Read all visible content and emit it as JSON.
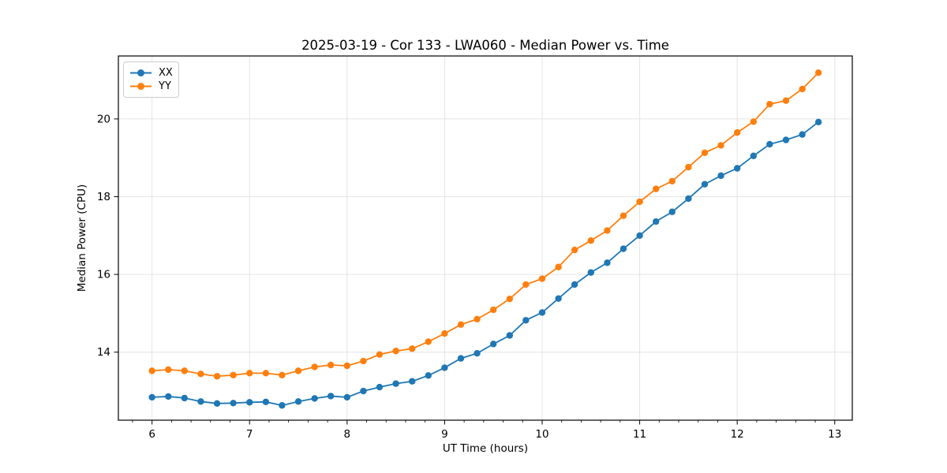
{
  "figure": {
    "title": "2025-03-19 - Cor 133 - LWA060 - Median Power vs. Time"
  },
  "chart_data": {
    "type": "line",
    "title": "2025-03-19 - Cor 133 - LWA060 - Median Power vs. Time",
    "xlabel": "UT Time (hours)",
    "ylabel": "Median Power (CPU)",
    "xlim": [
      5.655,
      13.18
    ],
    "ylim": [
      12.25,
      21.62
    ],
    "xticks": [
      6,
      7,
      8,
      9,
      10,
      11,
      12,
      13
    ],
    "yticks": [
      14,
      16,
      18,
      20
    ],
    "minor_x_step": 0.2,
    "grid": true,
    "grid_color": "#e4e4e4",
    "legend_position": "upper-left",
    "marker": "circle",
    "x": [
      6.0,
      6.167,
      6.333,
      6.5,
      6.667,
      6.833,
      7.0,
      7.167,
      7.333,
      7.5,
      7.667,
      7.833,
      8.0,
      8.167,
      8.333,
      8.5,
      8.667,
      8.833,
      9.0,
      9.167,
      9.333,
      9.5,
      9.667,
      9.833,
      10.0,
      10.167,
      10.333,
      10.5,
      10.667,
      10.833,
      11.0,
      11.167,
      11.333,
      11.5,
      11.667,
      11.833,
      12.0,
      12.167,
      12.333,
      12.5,
      12.667,
      12.833
    ],
    "series": [
      {
        "name": "XX",
        "color": "#1f77b4",
        "values": [
          12.84,
          12.86,
          12.82,
          12.73,
          12.68,
          12.69,
          12.71,
          12.72,
          12.63,
          12.73,
          12.81,
          12.87,
          12.84,
          13.0,
          13.1,
          13.19,
          13.25,
          13.4,
          13.6,
          13.84,
          13.97,
          14.21,
          14.43,
          14.82,
          15.02,
          15.38,
          15.74,
          16.05,
          16.3,
          16.66,
          17.0,
          17.36,
          17.61,
          17.95,
          18.32,
          18.54,
          18.73,
          19.05,
          19.35,
          19.46,
          19.6,
          19.92
        ]
      },
      {
        "name": "YY",
        "color": "#ff7f0e",
        "values": [
          13.52,
          13.55,
          13.52,
          13.44,
          13.38,
          13.41,
          13.46,
          13.46,
          13.41,
          13.52,
          13.62,
          13.67,
          13.65,
          13.77,
          13.94,
          14.03,
          14.09,
          14.27,
          14.48,
          14.71,
          14.85,
          15.09,
          15.37,
          15.74,
          15.89,
          16.19,
          16.63,
          16.87,
          17.13,
          17.51,
          17.87,
          18.2,
          18.4,
          18.76,
          19.13,
          19.32,
          19.65,
          19.93,
          20.38,
          20.47,
          20.77,
          21.19
        ]
      }
    ]
  }
}
